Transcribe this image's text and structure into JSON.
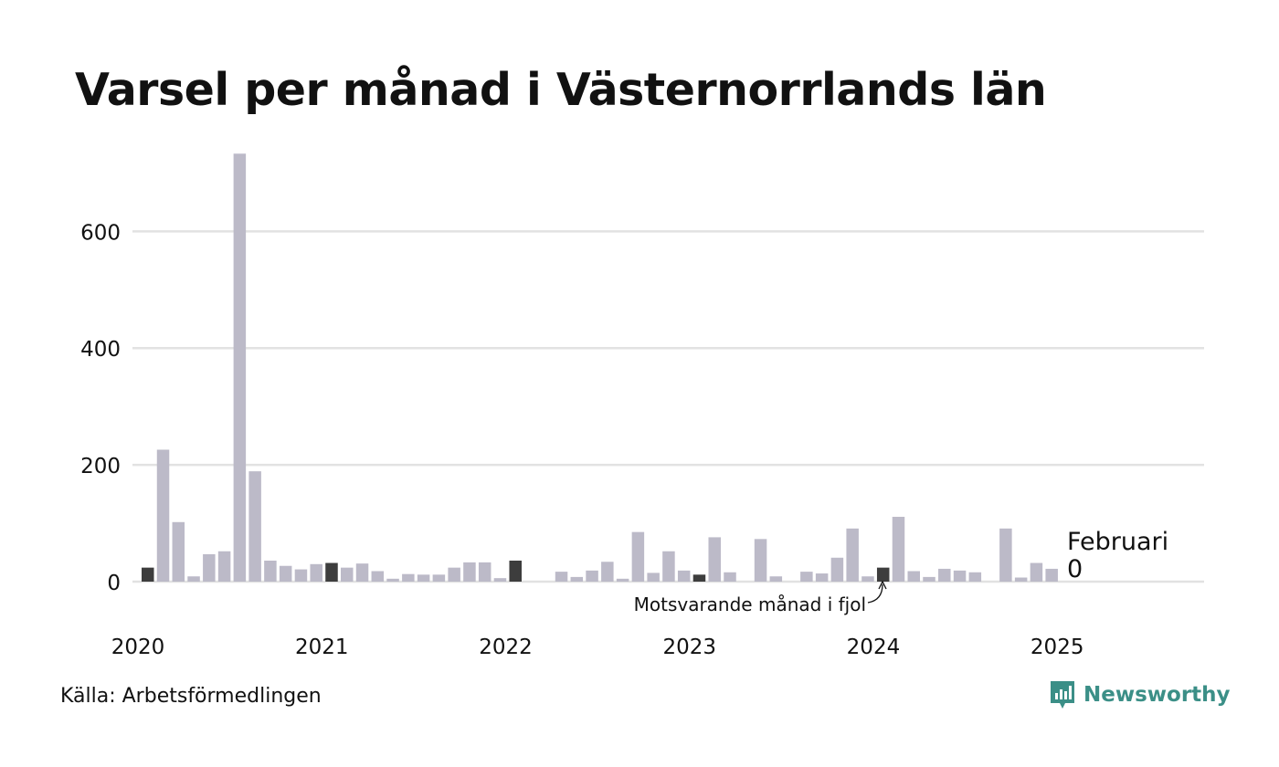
{
  "title": "Varsel per månad i Västernorrlands län",
  "source": "Källa: Arbetsförmedlingen",
  "brand": {
    "name": "Newsworthy",
    "icon": "newsworthy-logo-icon"
  },
  "colors": {
    "bar": "#bcbac8",
    "highlight": "#3d3d3d",
    "grid": "#e2e2e2",
    "brand": "#3b8f87"
  },
  "chart_data": {
    "type": "bar",
    "x_tick_labels": [
      "2020",
      "2021",
      "2022",
      "2023",
      "2024",
      "2025"
    ],
    "y_tick_labels": [
      "0",
      "200",
      "400",
      "600"
    ],
    "y_ticks": [
      0,
      200,
      400,
      600
    ],
    "ylim": [
      0,
      735
    ],
    "grid": true,
    "values": [
      24,
      226,
      102,
      9,
      47,
      52,
      733,
      189,
      36,
      27,
      21,
      30,
      32,
      24,
      31,
      18,
      5,
      13,
      12,
      12,
      24,
      33,
      33,
      6,
      36,
      0,
      0,
      17,
      8,
      19,
      34,
      5,
      85,
      15,
      52,
      19,
      12,
      76,
      16,
      0,
      73,
      9,
      0,
      17,
      14,
      41,
      91,
      9,
      24,
      111,
      18,
      8,
      22,
      19,
      16,
      0,
      91,
      7,
      32,
      22,
      0
    ],
    "highlight_indices": [
      0,
      12,
      24,
      36,
      48
    ],
    "annotations": {
      "latest_label": "Februari",
      "latest_value": "0",
      "previous_year_label": "Motsvarande månad i fjol"
    }
  }
}
